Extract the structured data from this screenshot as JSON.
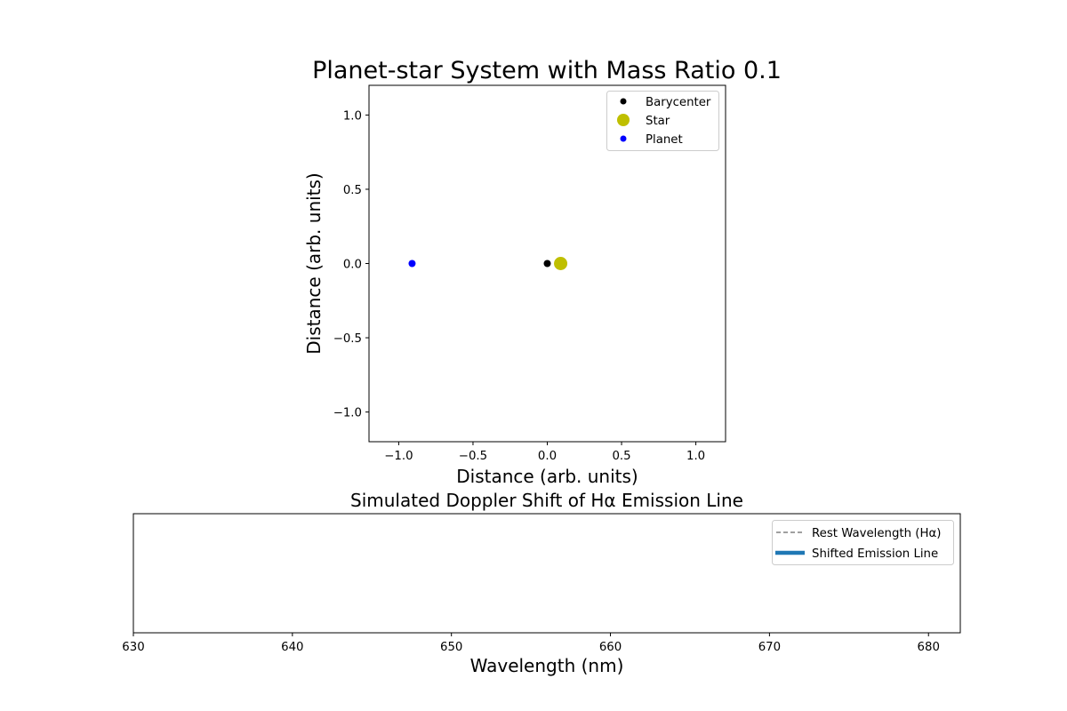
{
  "chart_data": [
    {
      "type": "scatter",
      "title": "Planet-star System with Mass Ratio 0.1",
      "xlabel": "Distance (arb. units)",
      "ylabel": "Distance (arb. units)",
      "xlim": [
        -1.2,
        1.2
      ],
      "ylim": [
        -1.2,
        1.2
      ],
      "x_ticks": [
        -1.0,
        -0.5,
        0.0,
        0.5,
        1.0
      ],
      "y_ticks": [
        -1.0,
        -0.5,
        0.0,
        0.5,
        1.0
      ],
      "x_tick_labels": [
        "−1.0",
        "−0.5",
        "0.0",
        "0.5",
        "1.0"
      ],
      "y_tick_labels": [
        "−1.0",
        "−0.5",
        "0.0",
        "0.5",
        "1.0"
      ],
      "grid": false,
      "legend_position": "top-right",
      "series": [
        {
          "name": "Barycenter",
          "color": "#000000",
          "marker": "small-dot",
          "points": [
            [
              0.0,
              0.0
            ]
          ]
        },
        {
          "name": "Star",
          "color": "#bfbf00",
          "marker": "large-dot",
          "points": [
            [
              0.09,
              0.0
            ]
          ]
        },
        {
          "name": "Planet",
          "color": "#0000ff",
          "marker": "small-dot",
          "points": [
            [
              -0.91,
              0.0
            ]
          ]
        }
      ]
    },
    {
      "type": "line",
      "title": "Simulated Doppler Shift of Hα Emission Line",
      "xlabel": "Wavelength (nm)",
      "ylabel": "",
      "xlim": [
        630,
        682
      ],
      "x_ticks": [
        630,
        640,
        650,
        660,
        670,
        680
      ],
      "x_tick_labels": [
        "630",
        "640",
        "650",
        "660",
        "670",
        "680"
      ],
      "y_ticks": [],
      "grid": false,
      "legend_position": "top-right",
      "series": [
        {
          "name": "Rest Wavelength (Hα)",
          "color": "#808080",
          "style": "dashed",
          "values": []
        },
        {
          "name": "Shifted Emission Line",
          "color": "#1f77b4",
          "style": "solid-thick",
          "values": []
        }
      ]
    }
  ]
}
